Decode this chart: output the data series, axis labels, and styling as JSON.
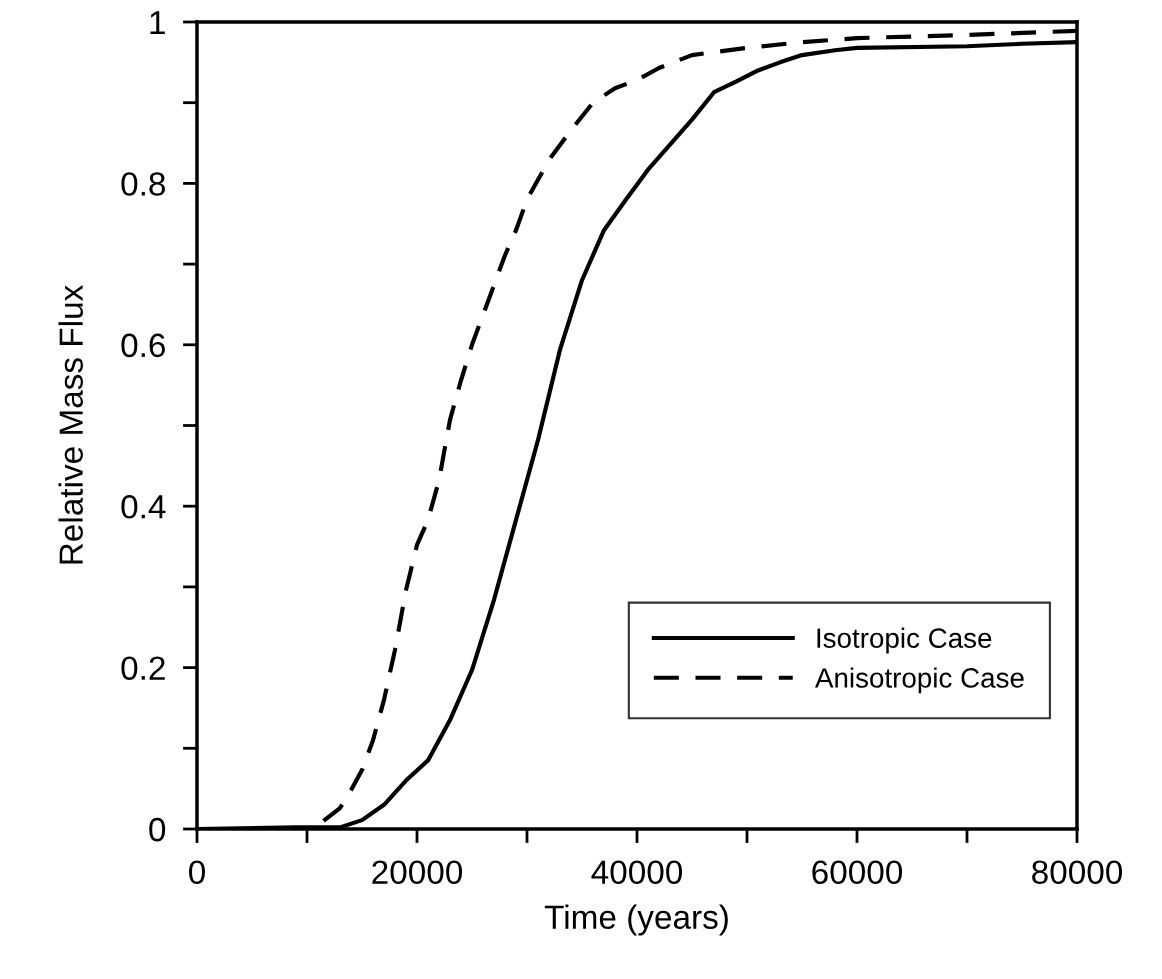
{
  "chart_data": {
    "type": "line",
    "xlabel": "Time (years)",
    "ylabel": "Relative Mass Flux",
    "xlim": [
      0,
      80000
    ],
    "ylim": [
      0,
      1
    ],
    "xticks": [
      0,
      {
        "value": 10000,
        "label": null
      },
      20000,
      {
        "value": 30000,
        "label": null
      },
      40000,
      {
        "value": 50000,
        "label": null
      },
      60000,
      {
        "value": 70000,
        "label": null
      },
      80000
    ],
    "yticks": [
      0,
      {
        "value": 0.1,
        "label": null
      },
      0.2,
      {
        "value": 0.3,
        "label": null
      },
      0.4,
      {
        "value": 0.5,
        "label": null
      },
      0.6,
      {
        "value": 0.7,
        "label": null
      },
      0.8,
      {
        "value": 0.9,
        "label": null
      },
      1
    ],
    "legend": "bottom right",
    "series": [
      {
        "name": "Isotropic Case",
        "color": "#000000",
        "line_style": "solid",
        "x": [
          0,
          9000,
          13000,
          15000,
          17000,
          19000,
          21000,
          23000,
          25000,
          27000,
          29000,
          31000,
          33000,
          35000,
          37000,
          39000,
          41000,
          43000,
          45000,
          47000,
          49000,
          51000,
          53000,
          55000,
          58000,
          60000,
          70000,
          75000,
          80000
        ],
        "values": [
          0,
          0.002,
          0.002,
          0.011,
          0.03,
          0.06,
          0.085,
          0.135,
          0.197,
          0.284,
          0.383,
          0.482,
          0.594,
          0.68,
          0.742,
          0.78,
          0.817,
          0.848,
          0.879,
          0.913,
          0.926,
          0.94,
          0.95,
          0.959,
          0.965,
          0.968,
          0.97,
          0.973,
          0.975
        ]
      },
      {
        "name": "Anisotropic Case",
        "color": "#000000",
        "line_style": "dashed",
        "x": [
          11500,
          13000,
          14000,
          15000,
          16000,
          17000,
          18000,
          19000,
          20000,
          21000,
          22000,
          23000,
          24000,
          25000,
          26000,
          27000,
          28000,
          29000,
          30000,
          32000,
          34000,
          36000,
          38000,
          40000,
          42000,
          45000,
          50000,
          55000,
          60000,
          70000,
          80000
        ],
        "values": [
          0.01,
          0.026,
          0.048,
          0.073,
          0.11,
          0.16,
          0.222,
          0.296,
          0.352,
          0.383,
          0.432,
          0.507,
          0.556,
          0.6,
          0.637,
          0.674,
          0.711,
          0.742,
          0.78,
          0.829,
          0.866,
          0.9,
          0.918,
          0.928,
          0.943,
          0.959,
          0.968,
          0.975,
          0.98,
          0.984,
          0.989
        ]
      }
    ]
  }
}
